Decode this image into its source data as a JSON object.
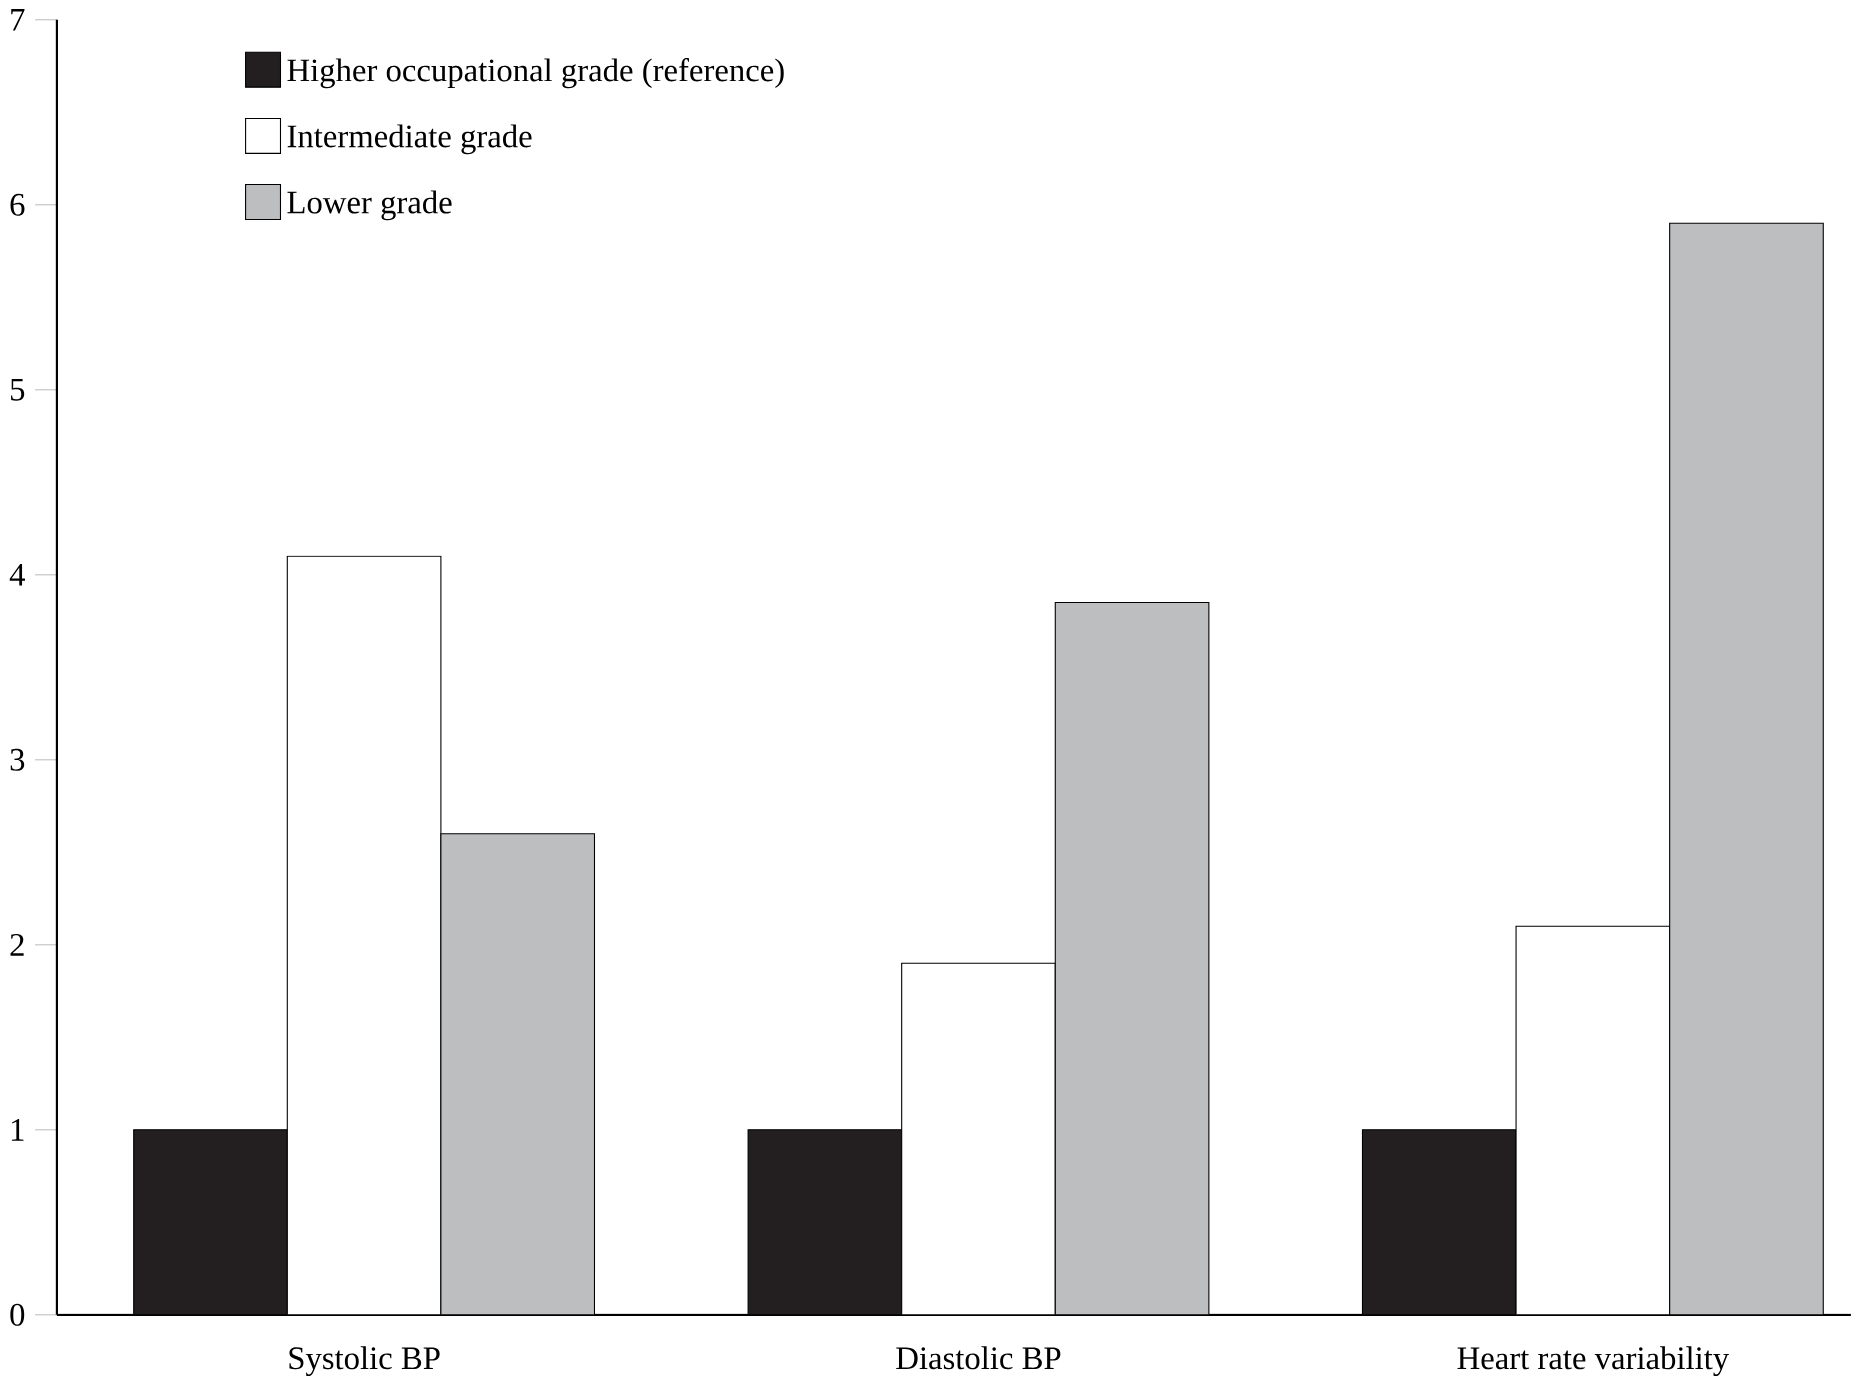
{
  "chart_data": {
    "type": "bar",
    "categories": [
      "Systolic BP",
      "Diastolic BP",
      "Heart rate variability"
    ],
    "series": [
      {
        "name": "Higher occupational grade (reference)",
        "color": "#231f20",
        "values": [
          1,
          1,
          1
        ]
      },
      {
        "name": "Intermediate grade",
        "color": "#ffffff",
        "values": [
          4.1,
          1.9,
          2.1
        ]
      },
      {
        "name": "Lower grade",
        "color": "#bcbec0",
        "values": [
          2.6,
          3.85,
          5.9
        ]
      }
    ],
    "ylim": [
      0,
      7
    ],
    "yticks": [
      0,
      1,
      2,
      3,
      4,
      5,
      6,
      7
    ],
    "legend": "top left",
    "grid": false
  }
}
